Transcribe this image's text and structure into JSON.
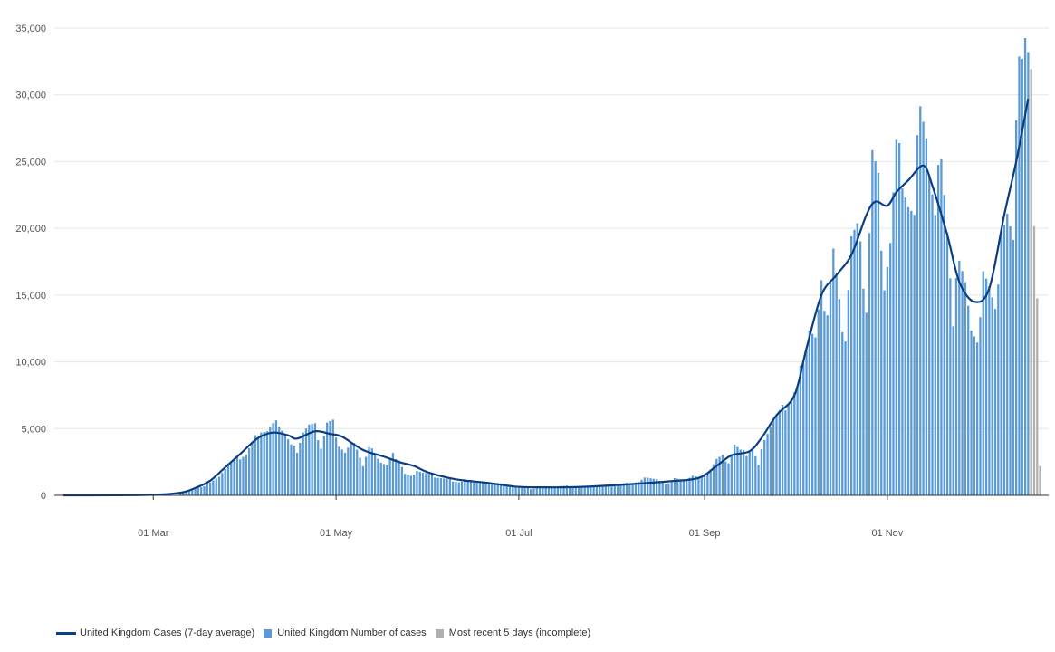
{
  "chart_data": {
    "type": "bar",
    "title": "",
    "xlabel": "",
    "ylabel": "",
    "x_start": "2020-01-31",
    "x_end": "2020-12-20",
    "x_ticks": [
      "01 Mar",
      "01 May",
      "01 Jul",
      "01 Sep",
      "01 Nov"
    ],
    "x_tick_dates": [
      "2020-03-01",
      "2020-05-01",
      "2020-07-01",
      "2020-09-01",
      "2020-11-01"
    ],
    "y_ticks": [
      "0",
      "5,000",
      "10,000",
      "15,000",
      "20,000",
      "25,000",
      "30,000",
      "35,000"
    ],
    "ylim": [
      0,
      35000
    ],
    "grid": true,
    "legend_position": "bottom-left",
    "colors": {
      "cases": "#5b9bd5",
      "average": "#0b3d82",
      "incomplete": "#b0b0b0"
    },
    "series": [
      {
        "name": "United Kingdom Cases (7-day average)",
        "type": "line",
        "points": [
          [
            "2020-01-31",
            0
          ],
          [
            "2020-02-28",
            30
          ],
          [
            "2020-03-10",
            200
          ],
          [
            "2020-03-15",
            550
          ],
          [
            "2020-03-20",
            1100
          ],
          [
            "2020-03-25",
            2100
          ],
          [
            "2020-03-30",
            3100
          ],
          [
            "2020-04-05",
            4300
          ],
          [
            "2020-04-10",
            4700
          ],
          [
            "2020-04-15",
            4500
          ],
          [
            "2020-04-18",
            4250
          ],
          [
            "2020-04-24",
            4800
          ],
          [
            "2020-04-29",
            4600
          ],
          [
            "2020-05-03",
            4400
          ],
          [
            "2020-05-10",
            3400
          ],
          [
            "2020-05-17",
            2900
          ],
          [
            "2020-05-22",
            2500
          ],
          [
            "2020-05-27",
            2200
          ],
          [
            "2020-06-01",
            1700
          ],
          [
            "2020-06-10",
            1200
          ],
          [
            "2020-06-20",
            950
          ],
          [
            "2020-06-30",
            650
          ],
          [
            "2020-07-10",
            600
          ],
          [
            "2020-07-20",
            620
          ],
          [
            "2020-07-30",
            720
          ],
          [
            "2020-08-10",
            880
          ],
          [
            "2020-08-20",
            1050
          ],
          [
            "2020-08-30",
            1300
          ],
          [
            "2020-09-05",
            2200
          ],
          [
            "2020-09-10",
            3000
          ],
          [
            "2020-09-16",
            3300
          ],
          [
            "2020-09-20",
            4300
          ],
          [
            "2020-09-25",
            6000
          ],
          [
            "2020-10-01",
            7500
          ],
          [
            "2020-10-05",
            11000
          ],
          [
            "2020-10-10",
            15000
          ],
          [
            "2020-10-15",
            16500
          ],
          [
            "2020-10-20",
            18000
          ],
          [
            "2020-10-25",
            21000
          ],
          [
            "2020-10-28",
            22000
          ],
          [
            "2020-11-01",
            21700
          ],
          [
            "2020-11-04",
            22700
          ],
          [
            "2020-11-08",
            23600
          ],
          [
            "2020-11-13",
            24700
          ],
          [
            "2020-11-16",
            23200
          ],
          [
            "2020-11-21",
            19500
          ],
          [
            "2020-11-25",
            16000
          ],
          [
            "2020-11-30",
            14500
          ],
          [
            "2020-12-05",
            15500
          ],
          [
            "2020-12-10",
            21000
          ],
          [
            "2020-12-14",
            25000
          ],
          [
            "2020-12-18",
            29700
          ]
        ]
      },
      {
        "name": "United Kingdom Number of cases",
        "type": "bar",
        "points": [
          [
            "2020-03-10",
            160
          ],
          [
            "2020-03-14",
            450
          ],
          [
            "2020-03-18",
            700
          ],
          [
            "2020-03-22",
            1200
          ],
          [
            "2020-03-26",
            2300
          ],
          [
            "2020-03-29",
            2700
          ],
          [
            "2020-04-01",
            3100
          ],
          [
            "2020-04-04",
            4300
          ],
          [
            "2020-04-06",
            4900
          ],
          [
            "2020-04-08",
            4800
          ],
          [
            "2020-04-10",
            5200
          ],
          [
            "2020-04-12",
            5400
          ],
          [
            "2020-04-14",
            4600
          ],
          [
            "2020-04-16",
            3700
          ],
          [
            "2020-04-18",
            3400
          ],
          [
            "2020-04-20",
            4800
          ],
          [
            "2020-04-22",
            5200
          ],
          [
            "2020-04-24",
            5100
          ],
          [
            "2020-04-26",
            3600
          ],
          [
            "2020-04-28",
            5400
          ],
          [
            "2020-04-30",
            5400
          ],
          [
            "2020-05-02",
            3800
          ],
          [
            "2020-05-04",
            3200
          ],
          [
            "2020-05-06",
            3800
          ],
          [
            "2020-05-08",
            3600
          ],
          [
            "2020-05-10",
            2200
          ],
          [
            "2020-05-12",
            3500
          ],
          [
            "2020-05-14",
            3200
          ],
          [
            "2020-05-16",
            2500
          ],
          [
            "2020-05-18",
            2200
          ],
          [
            "2020-05-20",
            3000
          ],
          [
            "2020-05-22",
            2700
          ],
          [
            "2020-05-24",
            1600
          ],
          [
            "2020-05-26",
            1400
          ],
          [
            "2020-05-28",
            1900
          ],
          [
            "2020-05-30",
            1700
          ],
          [
            "2020-06-03",
            1400
          ],
          [
            "2020-06-07",
            1200
          ],
          [
            "2020-06-11",
            1000
          ],
          [
            "2020-06-15",
            1100
          ],
          [
            "2020-06-19",
            900
          ],
          [
            "2020-06-23",
            1000
          ],
          [
            "2020-06-27",
            800
          ],
          [
            "2020-07-01",
            600
          ],
          [
            "2020-07-05",
            500
          ],
          [
            "2020-07-09",
            600
          ],
          [
            "2020-07-13",
            650
          ],
          [
            "2020-07-17",
            700
          ],
          [
            "2020-07-21",
            650
          ],
          [
            "2020-07-25",
            700
          ],
          [
            "2020-07-29",
            750
          ],
          [
            "2020-08-02",
            800
          ],
          [
            "2020-08-06",
            900
          ],
          [
            "2020-08-10",
            1000
          ],
          [
            "2020-08-13",
            1400
          ],
          [
            "2020-08-16",
            1200
          ],
          [
            "2020-08-19",
            800
          ],
          [
            "2020-08-22",
            1300
          ],
          [
            "2020-08-25",
            1100
          ],
          [
            "2020-08-28",
            1500
          ],
          [
            "2020-08-31",
            1300
          ],
          [
            "2020-09-03",
            2000
          ],
          [
            "2020-09-05",
            2700
          ],
          [
            "2020-09-07",
            2900
          ],
          [
            "2020-09-09",
            2500
          ],
          [
            "2020-09-11",
            3800
          ],
          [
            "2020-09-13",
            3300
          ],
          [
            "2020-09-15",
            3100
          ],
          [
            "2020-09-17",
            3600
          ],
          [
            "2020-09-19",
            2200
          ],
          [
            "2020-09-21",
            4400
          ],
          [
            "2020-09-24",
            5600
          ],
          [
            "2020-09-27",
            6400
          ],
          [
            "2020-09-30",
            7300
          ],
          [
            "2020-10-02",
            8000
          ],
          [
            "2020-10-04",
            10500
          ],
          [
            "2020-10-06",
            12600
          ],
          [
            "2020-10-08",
            11600
          ],
          [
            "2020-10-10",
            15200
          ],
          [
            "2020-10-12",
            13900
          ],
          [
            "2020-10-14",
            18300
          ],
          [
            "2020-10-16",
            14000
          ],
          [
            "2020-10-18",
            12000
          ],
          [
            "2020-10-20",
            19400
          ],
          [
            "2020-10-22",
            19600
          ],
          [
            "2020-10-24",
            16300
          ],
          [
            "2020-10-25",
            14100
          ],
          [
            "2020-10-27",
            25600
          ],
          [
            "2020-10-29",
            23000
          ],
          [
            "2020-10-31",
            16000
          ],
          [
            "2020-11-02",
            18900
          ],
          [
            "2020-11-04",
            25600
          ],
          [
            "2020-11-06",
            24200
          ],
          [
            "2020-11-08",
            21800
          ],
          [
            "2020-11-10",
            20400
          ],
          [
            "2020-11-12",
            31000
          ],
          [
            "2020-11-14",
            27300
          ],
          [
            "2020-11-15",
            24000
          ],
          [
            "2020-11-17",
            20200
          ],
          [
            "2020-11-19",
            26500
          ],
          [
            "2020-11-21",
            19900
          ],
          [
            "2020-11-23",
            12300
          ],
          [
            "2020-11-25",
            18700
          ],
          [
            "2020-11-27",
            16300
          ],
          [
            "2020-11-29",
            12100
          ],
          [
            "2020-12-01",
            10800
          ],
          [
            "2020-12-03",
            17300
          ],
          [
            "2020-12-05",
            15500
          ],
          [
            "2020-12-07",
            13300
          ],
          [
            "2020-12-09",
            20300
          ],
          [
            "2020-12-11",
            21100
          ],
          [
            "2020-12-13",
            18400
          ],
          [
            "2020-12-15",
            34600
          ],
          [
            "2020-12-16",
            33700
          ],
          [
            "2020-12-17",
            34600
          ],
          [
            "2020-12-18",
            33200
          ]
        ]
      },
      {
        "name": "Most recent 5 days (incomplete)",
        "type": "bar",
        "points": [
          [
            "2020-12-19",
            31000
          ],
          [
            "2020-12-20",
            19200
          ],
          [
            "2020-12-21",
            15700
          ],
          [
            "2020-12-22",
            2200
          ]
        ]
      }
    ]
  }
}
